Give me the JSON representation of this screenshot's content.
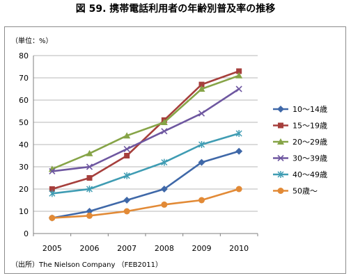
{
  "title": "図 59.  携帯電話利用者の年齢別普及率の推移",
  "source": "（出所）The Nielson Company （FEB2011）",
  "chart_data": {
    "type": "line",
    "title": "図 59.  携帯電話利用者の年齢別普及率の推移",
    "ylabel": "（単位：%）",
    "xlabel": "",
    "categories": [
      "2005",
      "2006",
      "2007",
      "2008",
      "2009",
      "2010"
    ],
    "ylim": [
      0,
      80
    ],
    "yticks": [
      0,
      10,
      20,
      30,
      40,
      50,
      60,
      70,
      80
    ],
    "grid": true,
    "legend": "right",
    "series": [
      {
        "name": "10〜14歳",
        "color": "#3f68a8",
        "marker": "diamond",
        "values": [
          7,
          10,
          15,
          20,
          32,
          37
        ]
      },
      {
        "name": "15〜19歳",
        "color": "#a63f3c",
        "marker": "square",
        "values": [
          20,
          25,
          35,
          51,
          67,
          73
        ]
      },
      {
        "name": "20〜29歳",
        "color": "#86a447",
        "marker": "triangle",
        "values": [
          29,
          36,
          44,
          50,
          65,
          71
        ]
      },
      {
        "name": "30〜39歳",
        "color": "#6e57a0",
        "marker": "x",
        "values": [
          28,
          30,
          38,
          46,
          54,
          65
        ]
      },
      {
        "name": "40〜49歳",
        "color": "#3f9cb3",
        "marker": "asterisk",
        "values": [
          18,
          20,
          26,
          32,
          40,
          45
        ]
      },
      {
        "name": "50歳〜",
        "color": "#e28a36",
        "marker": "circle",
        "values": [
          7,
          8,
          10,
          13,
          15,
          20
        ]
      }
    ]
  }
}
